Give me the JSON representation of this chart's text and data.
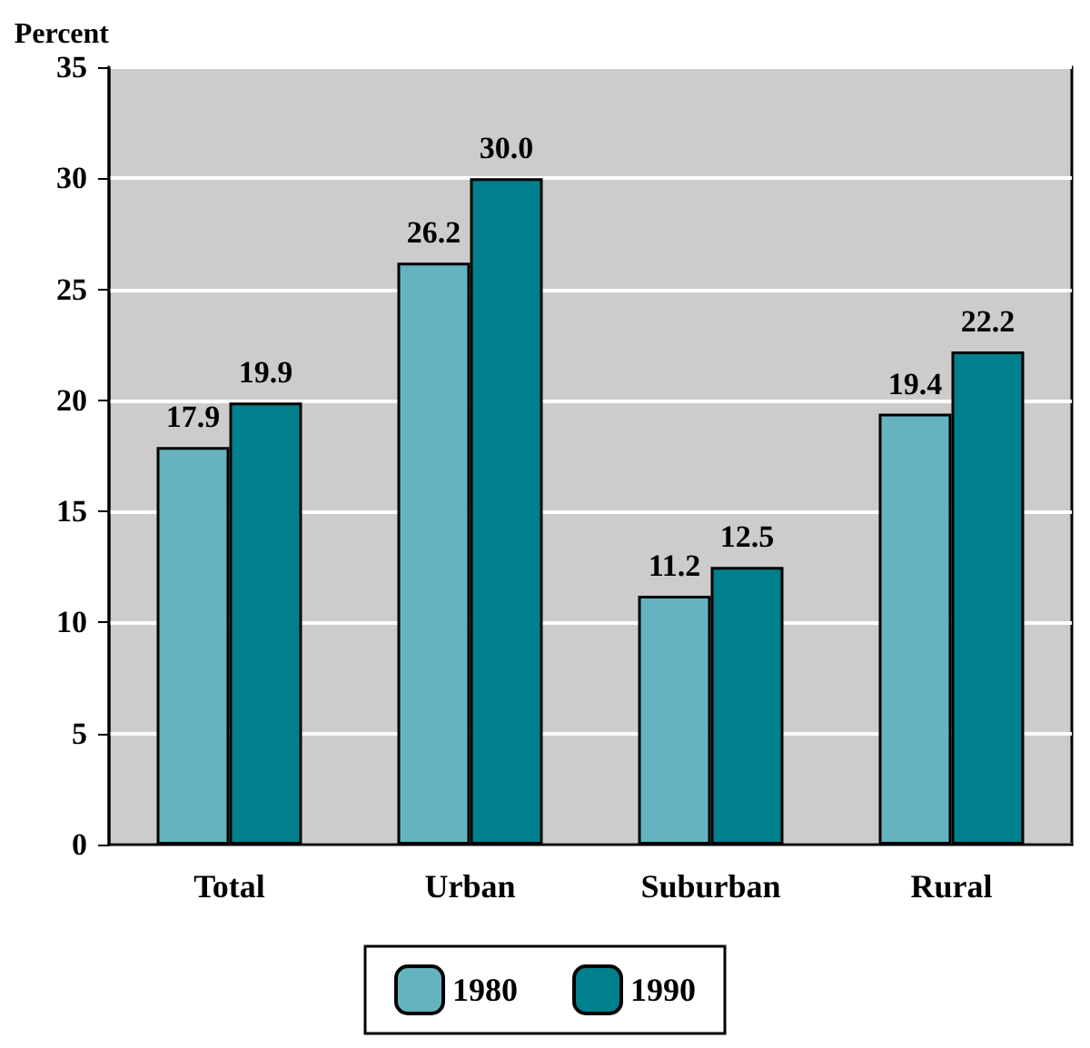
{
  "chart_data": {
    "type": "bar",
    "ylabel": "Percent",
    "categories": [
      "Total",
      "Urban",
      "Suburban",
      "Rural"
    ],
    "series": [
      {
        "name": "1980",
        "color": "#66b3c0",
        "values": [
          17.9,
          26.2,
          11.2,
          19.4
        ]
      },
      {
        "name": "1990",
        "color": "#00808c",
        "values": [
          19.9,
          30.0,
          12.5,
          22.2
        ]
      }
    ],
    "value_labels": [
      [
        "17.9",
        "26.2",
        "11.2",
        "19.4"
      ],
      [
        "19.9",
        "30.0",
        "12.5",
        "22.2"
      ]
    ],
    "ylim": [
      0,
      35
    ],
    "yticks": [
      0,
      5,
      10,
      15,
      20,
      25,
      30,
      35
    ],
    "grid": "y",
    "legend": "bottom"
  }
}
